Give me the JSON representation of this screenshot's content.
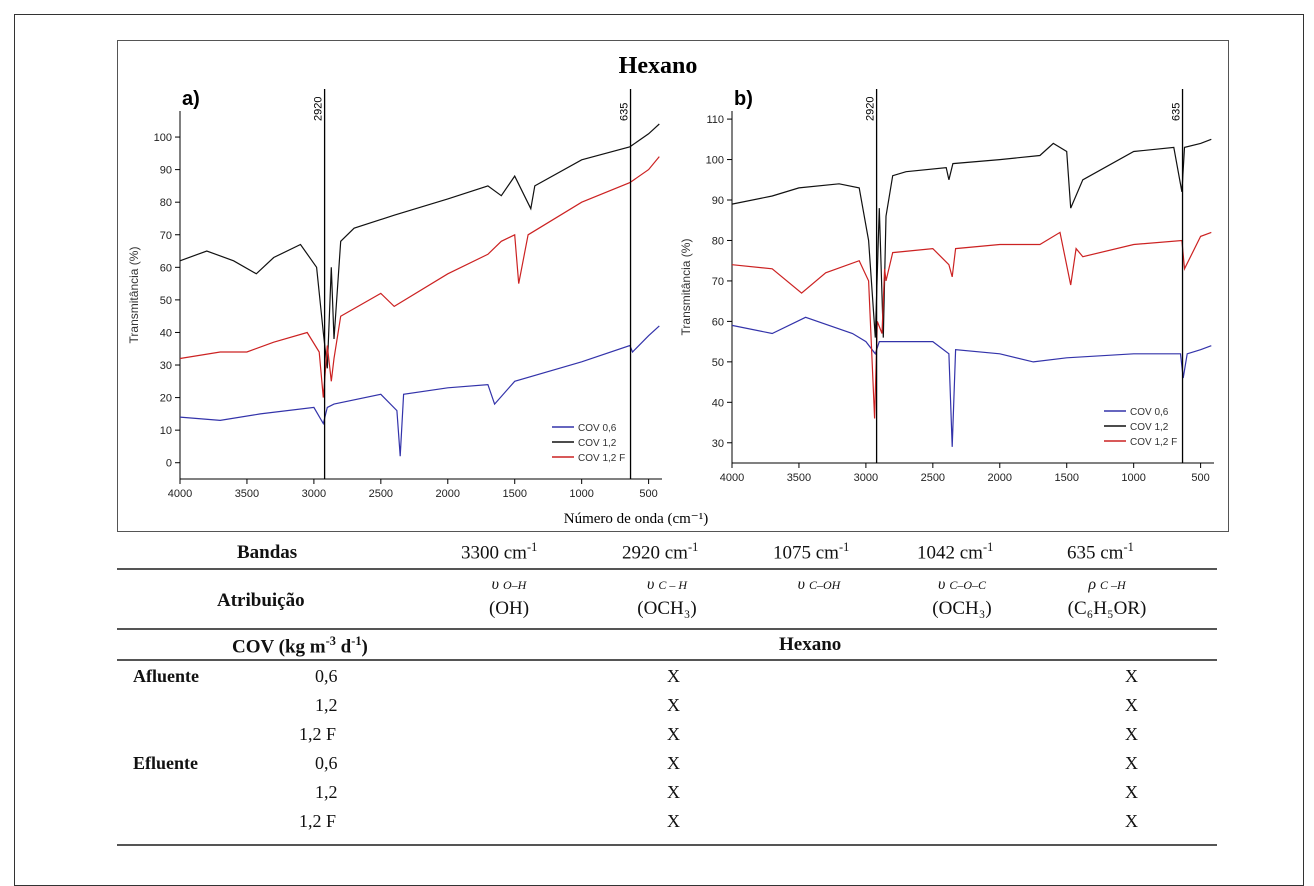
{
  "figure_title": "Hexano",
  "shared_xlabel": "Número de onda (cm⁻¹)",
  "chart_data": [
    {
      "type": "line",
      "panel_label": "a)",
      "ylabel": "Transmitância (%)",
      "xlim": [
        4000,
        400
      ],
      "ylim": [
        -5,
        108
      ],
      "x_ticks": [
        4000,
        3500,
        3000,
        2500,
        2000,
        1500,
        1000,
        500
      ],
      "y_ticks": [
        0,
        10,
        20,
        30,
        40,
        50,
        60,
        70,
        80,
        90,
        100
      ],
      "reference_lines": [
        {
          "x": 2920,
          "label": "2920"
        },
        {
          "x": 635,
          "label": "635"
        }
      ],
      "legend_position": "bottom-right",
      "series": [
        {
          "name": "COV 0,6",
          "color": "#3333aa",
          "x": [
            4000,
            3700,
            3400,
            3000,
            2930,
            2900,
            2850,
            2500,
            2380,
            2355,
            2330,
            2000,
            1700,
            1650,
            1500,
            1000,
            640,
            620,
            500,
            420
          ],
          "y": [
            14,
            13,
            15,
            17,
            12,
            17,
            18,
            21,
            16,
            2,
            21,
            23,
            24,
            18,
            25,
            31,
            36,
            34,
            39,
            42
          ]
        },
        {
          "name": "COV 1,2",
          "color": "#111111",
          "x": [
            4000,
            3800,
            3600,
            3430,
            3300,
            3100,
            2980,
            2930,
            2900,
            2870,
            2850,
            2800,
            2700,
            2400,
            2000,
            1700,
            1600,
            1500,
            1380,
            1350,
            1000,
            640,
            500,
            420
          ],
          "y": [
            62,
            65,
            62,
            58,
            63,
            67,
            60,
            40,
            29,
            60,
            38,
            68,
            72,
            76,
            81,
            85,
            82,
            88,
            78,
            85,
            93,
            97,
            101,
            104
          ]
        },
        {
          "name": "COV 1,2 F",
          "color": "#cc2222",
          "x": [
            4000,
            3700,
            3500,
            3300,
            3050,
            2960,
            2930,
            2900,
            2870,
            2850,
            2800,
            2500,
            2400,
            2000,
            1700,
            1600,
            1500,
            1470,
            1400,
            1000,
            640,
            500,
            420
          ],
          "y": [
            32,
            34,
            34,
            37,
            40,
            34,
            20,
            36,
            25,
            32,
            45,
            52,
            48,
            58,
            64,
            68,
            70,
            55,
            70,
            80,
            86,
            90,
            94
          ]
        }
      ]
    },
    {
      "type": "line",
      "panel_label": "b)",
      "ylabel": "Transmitância (%)",
      "xlim": [
        4000,
        400
      ],
      "ylim": [
        25,
        112
      ],
      "x_ticks": [
        4000,
        3500,
        3000,
        2500,
        2000,
        1500,
        1000,
        500
      ],
      "y_ticks": [
        30,
        40,
        50,
        60,
        70,
        80,
        90,
        100,
        110
      ],
      "reference_lines": [
        {
          "x": 2920,
          "label": "2920"
        },
        {
          "x": 635,
          "label": "635"
        }
      ],
      "legend_position": "bottom-right",
      "series": [
        {
          "name": "COV 0,6",
          "color": "#3333aa",
          "x": [
            4000,
            3700,
            3450,
            3100,
            3000,
            2930,
            2900,
            2500,
            2380,
            2355,
            2330,
            2000,
            1750,
            1500,
            1000,
            650,
            630,
            600,
            500,
            420
          ],
          "y": [
            59,
            57,
            61,
            57,
            55,
            52,
            55,
            55,
            52,
            29,
            53,
            52,
            50,
            51,
            52,
            52,
            46,
            52,
            53,
            54
          ]
        },
        {
          "name": "COV 1,2",
          "color": "#111111",
          "x": [
            4000,
            3700,
            3500,
            3200,
            3050,
            2980,
            2930,
            2900,
            2870,
            2850,
            2800,
            2700,
            2400,
            2380,
            2350,
            2000,
            1700,
            1600,
            1500,
            1470,
            1380,
            1000,
            700,
            640,
            620,
            500,
            420
          ],
          "y": [
            89,
            91,
            93,
            94,
            93,
            80,
            56,
            88,
            56,
            86,
            96,
            97,
            98,
            95,
            99,
            100,
            101,
            104,
            102,
            88,
            95,
            102,
            103,
            92,
            103,
            104,
            105
          ]
        },
        {
          "name": "COV 1,2 F",
          "color": "#cc2222",
          "x": [
            4000,
            3700,
            3480,
            3300,
            3050,
            2980,
            2935,
            2915,
            2880,
            2860,
            2850,
            2800,
            2500,
            2380,
            2355,
            2330,
            2000,
            1700,
            1550,
            1470,
            1430,
            1380,
            1000,
            640,
            620,
            500,
            420
          ],
          "y": [
            74,
            73,
            67,
            72,
            75,
            70,
            36,
            60,
            57,
            73,
            70,
            77,
            78,
            74,
            71,
            78,
            79,
            79,
            82,
            69,
            78,
            76,
            79,
            80,
            73,
            81,
            82
          ]
        }
      ]
    }
  ],
  "table": {
    "header": {
      "bandas": "Bandas",
      "b1": "3300 cm",
      "b2": "2920 cm",
      "b3": "1075 cm",
      "b4": "1042 cm",
      "b5": "635 cm",
      "sup": "-1"
    },
    "atribuicao": {
      "label": "Atribuição",
      "items": [
        {
          "symbol": "υ",
          "sub": "O–H",
          "group": "(OH)"
        },
        {
          "symbol": "υ",
          "sub": "C – H",
          "group": "(OCH₃)"
        },
        {
          "symbol": "υ",
          "sub": "C–OH",
          "group": ""
        },
        {
          "symbol": "υ",
          "sub": "C–O–C",
          "group": "(OCH₃)"
        },
        {
          "symbol": "ρ",
          "sub": "C –H",
          "group": "(C₆H₅OR)"
        }
      ]
    },
    "cov_header": {
      "label": "COV (kg m",
      "sup1": "-3",
      "mid": " d",
      "sup2": "-1",
      "end": ")",
      "hexano": "Hexano"
    },
    "rows": [
      {
        "group": "Afluente",
        "value": "0,6",
        "x2920": "X",
        "x635": "X"
      },
      {
        "group": "",
        "value": "1,2",
        "x2920": "X",
        "x635": "X"
      },
      {
        "group": "",
        "value": "1,2 F",
        "x2920": "X",
        "x635": "X"
      },
      {
        "group": "Efluente",
        "value": "0,6",
        "x2920": "X",
        "x635": "X"
      },
      {
        "group": "",
        "value": "1,2",
        "x2920": "X",
        "x635": "X"
      },
      {
        "group": "",
        "value": "1,2 F",
        "x2920": "X",
        "x635": "X"
      }
    ]
  }
}
